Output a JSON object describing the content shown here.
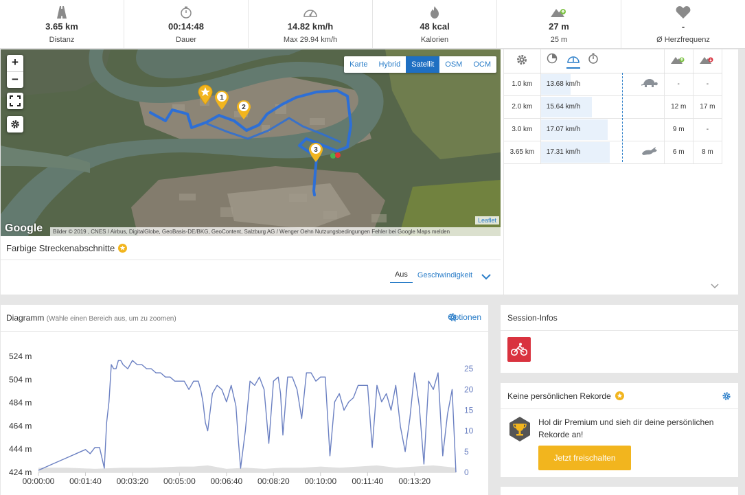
{
  "stats": [
    {
      "icon": "road-icon",
      "value": "3.65 km",
      "label": "Distanz"
    },
    {
      "icon": "stopwatch-icon",
      "value": "00:14:48",
      "label": "Dauer"
    },
    {
      "icon": "speedometer-icon",
      "value": "14.82 km/h",
      "label": "Max 29.94 km/h"
    },
    {
      "icon": "flame-icon",
      "value": "48 kcal",
      "label": "Kalorien"
    },
    {
      "icon": "ascent-icon",
      "value": "27 m",
      "label": "25 m"
    },
    {
      "icon": "heart-icon",
      "value": "-",
      "label": "Ø Herzfrequenz"
    }
  ],
  "map": {
    "zoom_in": "+",
    "zoom_out": "−",
    "layers": [
      "Karte",
      "Hybrid",
      "Satellit",
      "OSM",
      "OCM"
    ],
    "active_layer": "Satellit",
    "google": "Google",
    "attribution": "Bilder © 2019 , CNES / Airbus, DigitalGlobe, GeoBasis-DE/BKG, GeoContent, Salzburg AG / Wenger Oehn   Nutzungsbedingungen   Fehler bei Google Maps melden",
    "leaflet": "Leaflet",
    "markers": [
      "1",
      "2",
      "3"
    ]
  },
  "segments": {
    "title": "Farbige Streckenabschnitte",
    "options": [
      "Aus",
      "Geschwindigkeit"
    ],
    "selected": "Aus"
  },
  "laps": [
    {
      "dist": "1.0 km",
      "speed": "13.68 km/h",
      "speed_fraction": 0.35,
      "marker": "turtle-icon",
      "up": "-",
      "down": "-"
    },
    {
      "dist": "2.0 km",
      "speed": "15.64 km/h",
      "speed_fraction": 0.6,
      "marker": "",
      "up": "12 m",
      "down": "17 m"
    },
    {
      "dist": "3.0 km",
      "speed": "17.07 km/h",
      "speed_fraction": 0.78,
      "marker": "",
      "up": "9 m",
      "down": "-"
    },
    {
      "dist": "3.65 km",
      "speed": "17.31 km/h",
      "speed_fraction": 0.81,
      "marker": "rabbit-icon",
      "up": "6 m",
      "down": "8 m"
    }
  ],
  "diagram": {
    "title": "Diagramm",
    "hint": "(Wähle einen Bereich aus, um zu zoomen)",
    "options_label": "Optionen"
  },
  "chart_data": {
    "type": "line",
    "title": "",
    "xlabel": "",
    "ylabel": "",
    "x_ticks": [
      "00:00:00",
      "00:01:40",
      "00:03:20",
      "00:05:00",
      "00:06:40",
      "00:08:20",
      "00:10:00",
      "00:11:40",
      "00:13:20"
    ],
    "xlim": [
      0,
      888
    ],
    "y_left_ticks": [
      "524 m",
      "504 m",
      "484 m",
      "464 m",
      "444 m",
      "424 m"
    ],
    "ylim_left": [
      424,
      524
    ],
    "y_right_ticks": [
      "25",
      "20",
      "15",
      "10",
      "5",
      "0"
    ],
    "ylim_right": [
      0,
      28
    ],
    "series": [
      {
        "color": "#6b80c2",
        "axis": "right",
        "x": [
          0,
          30,
          60,
          90,
          100,
          110,
          120,
          130,
          140,
          145,
          150,
          155,
          160,
          165,
          170,
          175,
          180,
          190,
          200,
          210,
          220,
          230,
          240,
          250,
          260,
          270,
          280,
          290,
          300,
          310,
          320,
          330,
          340,
          345,
          350,
          355,
          360,
          370,
          380,
          390,
          400,
          410,
          420,
          425,
          430,
          440,
          450,
          460,
          470,
          480,
          490,
          500,
          510,
          515,
          520,
          530,
          540,
          550,
          560,
          570,
          580,
          590,
          600,
          610,
          620,
          630,
          640,
          650,
          660,
          670,
          680,
          690,
          700,
          710,
          720,
          730,
          740,
          750,
          760,
          770,
          780,
          790,
          800,
          810,
          820,
          830,
          840,
          850,
          860,
          870,
          880,
          888
        ],
        "values": [
          0.5,
          2,
          3.5,
          5,
          5.5,
          4.5,
          6,
          6,
          1,
          12,
          17,
          26,
          25,
          25,
          27,
          27,
          26,
          25,
          27,
          26,
          26,
          25,
          25,
          24,
          24,
          23,
          23,
          22,
          22,
          22,
          20,
          22,
          22,
          20,
          17,
          12,
          10,
          19,
          21,
          20,
          17,
          21,
          16,
          8,
          1,
          10,
          22,
          21,
          23,
          20,
          7,
          22,
          23,
          19,
          9,
          23,
          23,
          20,
          13,
          24,
          24,
          22,
          23,
          23,
          4,
          17,
          19,
          15,
          17,
          18,
          21,
          21,
          21,
          6,
          21,
          17,
          19,
          15,
          21,
          11,
          5,
          13,
          24,
          16,
          2,
          22,
          20,
          24,
          4,
          14,
          20,
          0
        ]
      },
      {
        "color": "#e0e0e0",
        "axis": "left",
        "x": [
          0,
          60,
          120,
          180,
          240,
          300,
          330,
          360,
          400,
          440,
          480,
          520,
          560,
          600,
          640,
          680,
          720,
          760,
          800,
          840,
          888
        ],
        "values": [
          428,
          428,
          427,
          428,
          428,
          429,
          429,
          430,
          427,
          428,
          427,
          428,
          428,
          429,
          428,
          429,
          430,
          428,
          429,
          430,
          428
        ]
      }
    ]
  },
  "session": {
    "title": "Session-Infos",
    "sport_icon": "cycling-icon"
  },
  "records": {
    "title": "Keine persönlichen Rekorde",
    "text": "Hol dir Premium und sieh dir deine persönlichen Rekorde an!",
    "button": "Jetzt freischalten"
  }
}
